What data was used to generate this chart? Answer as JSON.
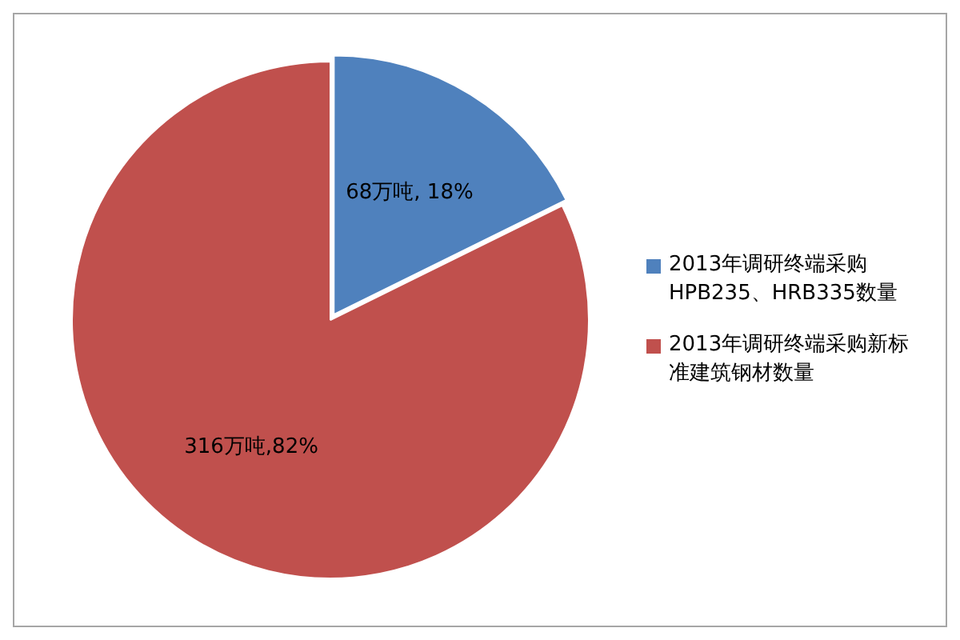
{
  "chart_data": {
    "type": "pie",
    "categories": [
      "2013年调研终端采购HPB235、HRB335数量",
      "2013年调研终端采购新标准建筑钢材数量"
    ],
    "values": [
      68,
      316
    ],
    "colors": [
      "#4f81bd",
      "#c0504d"
    ],
    "value_labels": [
      "68万吨, 18%",
      "316万吨,82%"
    ],
    "legend": "right"
  }
}
